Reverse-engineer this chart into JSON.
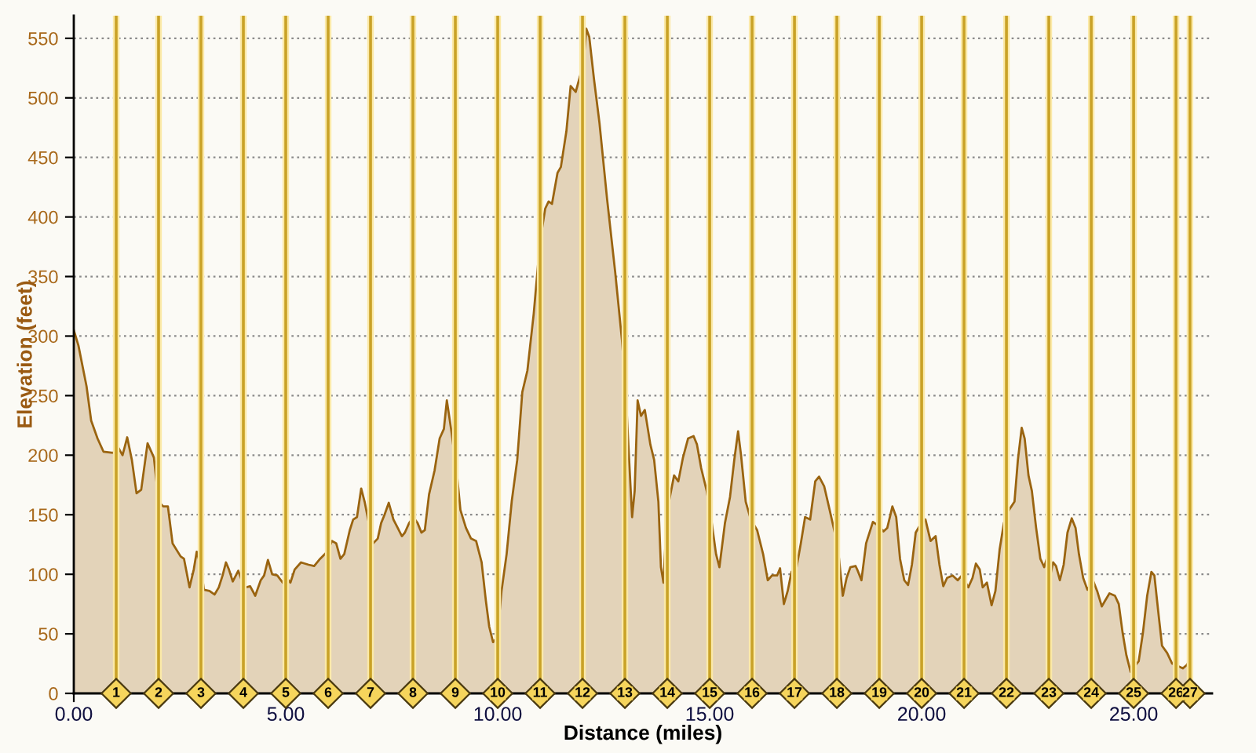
{
  "chart_data": {
    "type": "area",
    "xlabel": "Distance (miles)",
    "ylabel": "Elevation (feet)",
    "x": [
      0.0,
      0.11,
      0.3,
      0.41,
      0.56,
      0.7,
      0.93,
      1.04,
      1.15,
      1.26,
      1.37,
      1.48,
      1.59,
      1.74,
      1.89,
      2.0,
      2.11,
      2.22,
      2.33,
      2.52,
      2.6,
      2.73,
      2.83,
      2.9,
      2.99,
      3.07,
      3.2,
      3.32,
      3.42,
      3.51,
      3.59,
      3.66,
      3.75,
      3.88,
      3.96,
      4.06,
      4.16,
      4.28,
      4.41,
      4.49,
      4.58,
      4.68,
      4.8,
      4.93,
      5.02,
      5.11,
      5.21,
      5.36,
      5.54,
      5.67,
      5.81,
      5.98,
      6.09,
      6.19,
      6.29,
      6.38,
      6.51,
      6.59,
      6.68,
      6.78,
      6.86,
      6.96,
      7.06,
      7.17,
      7.25,
      7.33,
      7.43,
      7.54,
      7.64,
      7.74,
      7.81,
      7.91,
      8.01,
      8.11,
      8.2,
      8.28,
      8.38,
      8.51,
      8.63,
      8.73,
      8.8,
      8.9,
      9.03,
      9.12,
      9.25,
      9.37,
      9.49,
      9.62,
      9.72,
      9.8,
      9.89,
      9.99,
      10.09,
      10.21,
      10.33,
      10.46,
      10.58,
      10.7,
      10.85,
      11.0,
      11.12,
      11.2,
      11.28,
      11.41,
      11.49,
      11.62,
      11.72,
      11.84,
      11.94,
      12.03,
      12.09,
      12.16,
      12.27,
      12.4,
      12.58,
      12.77,
      12.93,
      13.01,
      13.1,
      13.17,
      13.23,
      13.3,
      13.38,
      13.47,
      13.6,
      13.69,
      13.79,
      13.85,
      13.91,
      13.96,
      14.04,
      14.16,
      14.26,
      14.37,
      14.49,
      14.62,
      14.7,
      14.8,
      14.93,
      15.03,
      15.15,
      15.23,
      15.36,
      15.48,
      15.58,
      15.67,
      15.74,
      15.85,
      15.97,
      16.12,
      16.26,
      16.37,
      16.47,
      16.59,
      16.66,
      16.75,
      16.84,
      16.93,
      17.05,
      17.15,
      17.25,
      17.37,
      17.49,
      17.58,
      17.7,
      17.83,
      17.95,
      18.04,
      18.14,
      18.23,
      18.32,
      18.44,
      18.48,
      18.58,
      18.69,
      18.85,
      18.97,
      19.1,
      19.19,
      19.31,
      19.4,
      19.49,
      19.59,
      19.68,
      19.77,
      19.86,
      19.99,
      20.09,
      20.21,
      20.33,
      20.42,
      20.51,
      20.6,
      20.73,
      20.85,
      20.95,
      21.1,
      21.2,
      21.28,
      21.37,
      21.44,
      21.54,
      21.65,
      21.74,
      21.84,
      21.94,
      22.06,
      22.19,
      22.27,
      22.36,
      22.43,
      22.52,
      22.6,
      22.7,
      22.8,
      22.89,
      22.95,
      23.01,
      23.1,
      23.17,
      23.26,
      23.35,
      23.44,
      23.54,
      23.63,
      23.71,
      23.81,
      23.91,
      24.04,
      24.14,
      24.25,
      24.33,
      24.43,
      24.56,
      24.65,
      24.74,
      24.83,
      24.93,
      25.03,
      25.12,
      25.22,
      25.32,
      25.42,
      25.49,
      25.58,
      25.67,
      25.79,
      25.91,
      26.04,
      26.16,
      26.26,
      26.33
    ],
    "series": [
      {
        "color": "#e3d3b9",
        "values": [
          305,
          292,
          258,
          229,
          214,
          203,
          202,
          207,
          200,
          215,
          196,
          168,
          171,
          210,
          198,
          161,
          157,
          157,
          126,
          115,
          113,
          89,
          104,
          119,
          108,
          87,
          86,
          83,
          89,
          99,
          110,
          104,
          94,
          103,
          95,
          89,
          90,
          82,
          95,
          99,
          112,
          100,
          99,
          93,
          97,
          93,
          104,
          110,
          108,
          107,
          113,
          119,
          128,
          126,
          113,
          117,
          137,
          146,
          148,
          172,
          161,
          143,
          126,
          130,
          143,
          150,
          160,
          146,
          139,
          132,
          135,
          143,
          148,
          143,
          135,
          137,
          167,
          187,
          214,
          222,
          246,
          222,
          187,
          154,
          139,
          130,
          128,
          110,
          78,
          56,
          43,
          47,
          86,
          117,
          161,
          196,
          253,
          271,
          319,
          380,
          407,
          413,
          411,
          437,
          442,
          472,
          510,
          505,
          518,
          532,
          558,
          551,
          516,
          479,
          415,
          354,
          297,
          260,
          196,
          148,
          170,
          246,
          233,
          238,
          209,
          196,
          161,
          106,
          93,
          128,
          161,
          183,
          178,
          198,
          214,
          216,
          209,
          189,
          170,
          148,
          117,
          106,
          143,
          165,
          196,
          220,
          200,
          161,
          146,
          137,
          117,
          95,
          99,
          99,
          105,
          75,
          86,
          102,
          106,
          126,
          148,
          146,
          178,
          182,
          174,
          154,
          135,
          117,
          82,
          97,
          106,
          107,
          104,
          95,
          126,
          144,
          141,
          136,
          139,
          157,
          148,
          113,
          95,
          91,
          108,
          135,
          143,
          146,
          128,
          132,
          108,
          90,
          97,
          99,
          95,
          99,
          89,
          97,
          109,
          104,
          89,
          93,
          74,
          86,
          121,
          143,
          154,
          161,
          196,
          223,
          214,
          183,
          170,
          139,
          113,
          106,
          113,
          95,
          110,
          107,
          95,
          108,
          135,
          147,
          139,
          117,
          97,
          87,
          95,
          86,
          73,
          78,
          84,
          82,
          75,
          51,
          32,
          18,
          23,
          27,
          51,
          82,
          102,
          99,
          69,
          40,
          34,
          25,
          23,
          21,
          24,
          29
        ]
      }
    ],
    "xlim": [
      0,
      26.85
    ],
    "ylim": [
      0,
      569
    ],
    "xticks": [
      {
        "value": 0,
        "label": "0.00"
      },
      {
        "value": 5,
        "label": "5.00"
      },
      {
        "value": 10,
        "label": "10.00"
      },
      {
        "value": 15,
        "label": "15.00"
      },
      {
        "value": 20,
        "label": "20.00"
      },
      {
        "value": 25,
        "label": "25.00"
      }
    ],
    "yticks": [
      0,
      50,
      100,
      150,
      200,
      250,
      300,
      350,
      400,
      450,
      500,
      550
    ],
    "grid": "y",
    "ref_lines": [
      {
        "axis": "x",
        "value": 1,
        "label": "1",
        "color": "#c9a227"
      },
      {
        "axis": "x",
        "value": 2,
        "label": "2",
        "color": "#c9a227"
      },
      {
        "axis": "x",
        "value": 3,
        "label": "3",
        "color": "#c9a227"
      },
      {
        "axis": "x",
        "value": 4,
        "label": "4",
        "color": "#c9a227"
      },
      {
        "axis": "x",
        "value": 5,
        "label": "5",
        "color": "#c9a227"
      },
      {
        "axis": "x",
        "value": 6,
        "label": "6",
        "color": "#c9a227"
      },
      {
        "axis": "x",
        "value": 7,
        "label": "7",
        "color": "#c9a227"
      },
      {
        "axis": "x",
        "value": 8,
        "label": "8",
        "color": "#c9a227"
      },
      {
        "axis": "x",
        "value": 9,
        "label": "9",
        "color": "#c9a227"
      },
      {
        "axis": "x",
        "value": 10,
        "label": "10",
        "color": "#c9a227"
      },
      {
        "axis": "x",
        "value": 11,
        "label": "11",
        "color": "#c9a227"
      },
      {
        "axis": "x",
        "value": 12,
        "label": "12",
        "color": "#c9a227"
      },
      {
        "axis": "x",
        "value": 13,
        "label": "13",
        "color": "#c9a227"
      },
      {
        "axis": "x",
        "value": 14,
        "label": "14",
        "color": "#c9a227"
      },
      {
        "axis": "x",
        "value": 15,
        "label": "15",
        "color": "#c9a227"
      },
      {
        "axis": "x",
        "value": 16,
        "label": "16",
        "color": "#c9a227"
      },
      {
        "axis": "x",
        "value": 17,
        "label": "17",
        "color": "#c9a227"
      },
      {
        "axis": "x",
        "value": 18,
        "label": "18",
        "color": "#c9a227"
      },
      {
        "axis": "x",
        "value": 19,
        "label": "19",
        "color": "#c9a227"
      },
      {
        "axis": "x",
        "value": 20,
        "label": "20",
        "color": "#c9a227"
      },
      {
        "axis": "x",
        "value": 21,
        "label": "21",
        "color": "#c9a227"
      },
      {
        "axis": "x",
        "value": 22,
        "label": "22",
        "color": "#c9a227"
      },
      {
        "axis": "x",
        "value": 23,
        "label": "23",
        "color": "#c9a227"
      },
      {
        "axis": "x",
        "value": 24,
        "label": "24",
        "color": "#c9a227"
      },
      {
        "axis": "x",
        "value": 25,
        "label": "25",
        "color": "#c9a227"
      },
      {
        "axis": "x",
        "value": 26,
        "label": "26",
        "color": "#c9a227"
      },
      {
        "axis": "x",
        "value": 26.33,
        "color": "#c9a227"
      }
    ],
    "annotations": [
      {
        "text": "27",
        "x": 26.33,
        "y": 0
      }
    ]
  }
}
